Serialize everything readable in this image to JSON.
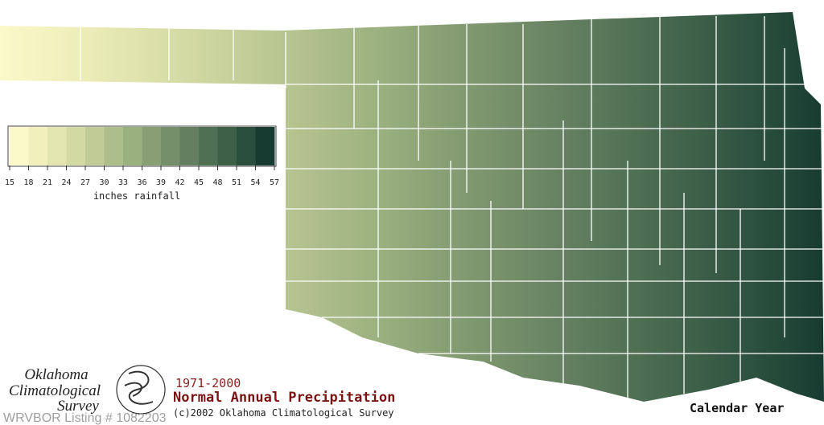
{
  "legend": {
    "ticks": [
      15,
      18,
      21,
      24,
      27,
      30,
      33,
      36,
      39,
      42,
      45,
      48,
      51,
      54,
      57
    ],
    "colors": [
      "#fbf8c9",
      "#f1f0bd",
      "#e2e5b0",
      "#d2d9a3",
      "#c0cb96",
      "#aebe8b",
      "#9bb07f",
      "#889f74",
      "#758f6a",
      "#637f60",
      "#507054",
      "#3e6049",
      "#2b4f3e",
      "#173b30"
    ],
    "label": "inches rainfall"
  },
  "logo": {
    "line1": "Oklahoma",
    "line2": "Climatological",
    "line3": "Survey"
  },
  "period": "1971-2000",
  "title": "Normal Annual Precipitation",
  "credit": "(c)2002 Oklahoma Climatological Survey",
  "subtitle": "Calendar Year",
  "watermark": "WRVBOR Listing # 1082203"
}
